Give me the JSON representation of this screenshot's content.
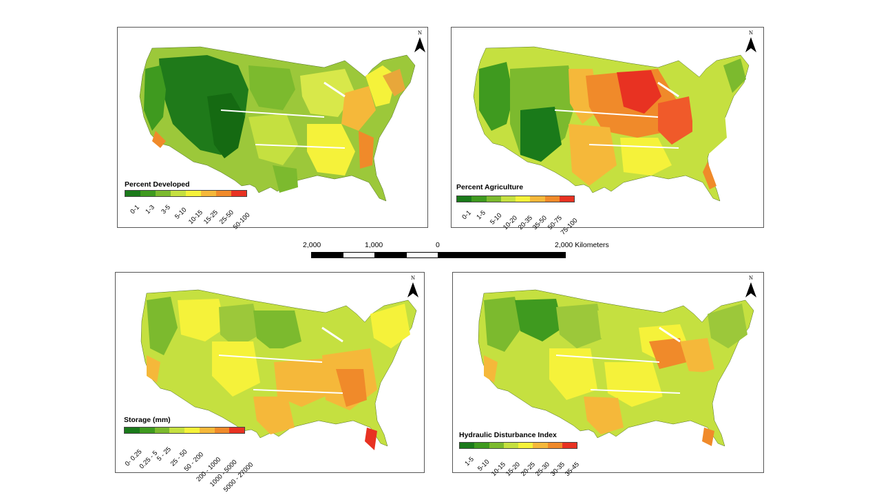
{
  "panels": {
    "developed": {
      "title": "Percent Developed",
      "classes": [
        "0-1",
        "1-3",
        "3-5",
        "5-10",
        "10-15",
        "15-25",
        "25-50",
        "50-100"
      ],
      "colors": [
        "#1a7a1a",
        "#3f9a1f",
        "#7cba2e",
        "#c5e040",
        "#f5f23a",
        "#f5b83a",
        "#f08a2a",
        "#e83222"
      ]
    },
    "agriculture": {
      "title": "Percent Agriculture",
      "classes": [
        "0-1",
        "1-5",
        "5-10",
        "10-20",
        "20-35",
        "35-50",
        "50-75",
        "75-100"
      ],
      "colors": [
        "#1a7a1a",
        "#3f9a1f",
        "#7cba2e",
        "#c5e040",
        "#f5f23a",
        "#f5b83a",
        "#f08a2a",
        "#e83222"
      ]
    },
    "storage": {
      "title": "Storage (mm)",
      "classes": [
        "0- 0.25",
        "0.25 - 5",
        "5 - 25",
        "25 - 50",
        "50 - 200",
        "200 - 1000",
        "1000 - 5000",
        "5000 - 27000"
      ],
      "colors": [
        "#1a7a1a",
        "#3f9a1f",
        "#7cba2e",
        "#c5e040",
        "#f5f23a",
        "#f5b83a",
        "#f08a2a",
        "#e83222"
      ]
    },
    "disturbance": {
      "title": "Hydraulic Disturbance Index",
      "classes": [
        "1-5",
        "5-10",
        "10-15",
        "15-20",
        "20-25",
        "25-30",
        "30-35",
        "35-45"
      ],
      "colors": [
        "#1a7a1a",
        "#3f9a1f",
        "#7cba2e",
        "#c5e040",
        "#f5f23a",
        "#f5b83a",
        "#f08a2a",
        "#e83222"
      ]
    }
  },
  "north_label": "N",
  "scale": {
    "labels": [
      "2,000",
      "1,000",
      "0",
      "2,000 Kilometers"
    ]
  }
}
